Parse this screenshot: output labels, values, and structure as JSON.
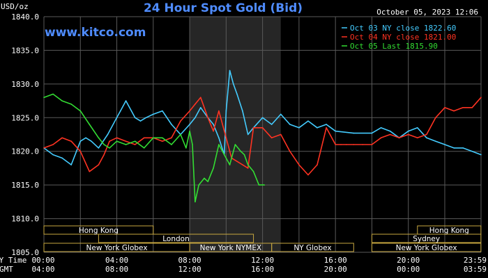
{
  "header": {
    "title": "24 Hour Spot Gold (Bid)",
    "unit": "USD/oz",
    "timestamp": "October 05, 2023 12:06",
    "watermark": "www.kitco.com"
  },
  "footer": {
    "left_row1": "NY Time",
    "left_row2": "GMT"
  },
  "sessions": [
    {
      "row": 1,
      "label": "Hong Kong",
      "start": "00:00",
      "end": "06:00"
    },
    {
      "row": 1,
      "label": "Hong Kong",
      "start": "20:30",
      "end": "23:59"
    },
    {
      "row": 2,
      "label": "London",
      "start": "03:00",
      "end": "11:30"
    },
    {
      "row": 2,
      "label": "Sydney",
      "start": "18:00",
      "end": "23:59"
    },
    {
      "row": 3,
      "label": "New York Globex",
      "start": "00:00",
      "end": "08:00"
    },
    {
      "row": 3,
      "label": "New York NYMEX",
      "start": "08:00",
      "end": "12:30"
    },
    {
      "row": 3,
      "label": "NY Globex",
      "start": "12:30",
      "end": "17:00"
    },
    {
      "row": 3,
      "label": "New York Globex",
      "start": "18:00",
      "end": "23:59"
    }
  ],
  "chart_data": {
    "type": "line",
    "ylim": [
      1805,
      1840
    ],
    "y_ticks": [
      "1805.0",
      "1810.0",
      "1815.0",
      "1820.0",
      "1825.0",
      "1830.0",
      "1835.0",
      "1840.0"
    ],
    "x_ticks_ny": [
      "00:00",
      "04:00",
      "08:00",
      "12:00",
      "16:00",
      "20:00",
      "23:59"
    ],
    "x_ticks_gmt": [
      "04:00",
      "08:00",
      "12:00",
      "16:00",
      "20:00",
      "00:00",
      "03:59"
    ],
    "highlight_range_hours": [
      8,
      13
    ],
    "grid": true,
    "legend_position": "top-right",
    "series": [
      {
        "name": "Oct 03 NY close 1822.60",
        "color": "#44ccff",
        "x": [
          0,
          0.5,
          1,
          1.5,
          2,
          2.3,
          2.6,
          3,
          3.5,
          4,
          4.2,
          4.5,
          4.8,
          5,
          5.3,
          5.6,
          6,
          6.5,
          7,
          7.5,
          8,
          8.3,
          8.6,
          9,
          9.3,
          9.6,
          9.9,
          10,
          10.2,
          10.4,
          10.6,
          10.9,
          11.2,
          11.5,
          12,
          12.5,
          13,
          13.5,
          14,
          14.5,
          15,
          15.5,
          16,
          17,
          18,
          18.5,
          19,
          19.5,
          20,
          20.5,
          21,
          21.5,
          22,
          22.5,
          23,
          23.5,
          23.99
        ],
        "y": [
          1820.5,
          1819.5,
          1819,
          1818,
          1821.5,
          1822,
          1821.5,
          1820.5,
          1822.5,
          1825,
          1826,
          1827.5,
          1826,
          1825,
          1824.5,
          1825,
          1825.5,
          1826,
          1824,
          1822.5,
          1824,
          1825,
          1826.5,
          1825,
          1824,
          1822,
          1819.5,
          1826,
          1832,
          1830,
          1828.5,
          1826,
          1822.5,
          1823.5,
          1825,
          1824,
          1825.5,
          1824,
          1823.5,
          1824.5,
          1823.5,
          1824,
          1823,
          1822.7,
          1822.7,
          1823.5,
          1823,
          1822,
          1823,
          1823.5,
          1822,
          1821.5,
          1821,
          1820.5,
          1820.5,
          1820,
          1819.5
        ]
      },
      {
        "name": "Oct 04 NY close 1821.00",
        "color": "#ff3322",
        "x": [
          0,
          0.5,
          1,
          1.5,
          2,
          2.5,
          3,
          3.3,
          3.6,
          4,
          4.5,
          5,
          5.5,
          6,
          6.5,
          7,
          7.5,
          8,
          8.3,
          8.6,
          9,
          9.3,
          9.6,
          10,
          10.3,
          10.6,
          10.9,
          11.2,
          11.5,
          12,
          12.5,
          13,
          13.5,
          14,
          14.5,
          15,
          15.5,
          16,
          16.3,
          16.6,
          17,
          17.5,
          18,
          18.5,
          19,
          19.5,
          20,
          20.5,
          21,
          21.5,
          22,
          22.5,
          23,
          23.5,
          23.99
        ],
        "y": [
          1820.5,
          1821,
          1822,
          1821.5,
          1820,
          1817,
          1818,
          1819.5,
          1821.5,
          1822,
          1821.5,
          1821,
          1822,
          1822,
          1821.5,
          1822,
          1824.5,
          1826,
          1827,
          1828,
          1825,
          1823,
          1826,
          1822,
          1819,
          1818.5,
          1818,
          1817.5,
          1823.5,
          1823.5,
          1822,
          1822.5,
          1820,
          1818,
          1816.5,
          1818,
          1823.5,
          1821,
          1821,
          1821,
          1821,
          1821,
          1821,
          1822,
          1822.5,
          1822,
          1822.5,
          1822,
          1822.5,
          1825,
          1826.5,
          1826,
          1826.5,
          1826.5,
          1828
        ]
      },
      {
        "name": "Oct 05 Last 1815.90",
        "color": "#33dd33",
        "x": [
          0,
          0.5,
          1,
          1.5,
          2,
          2.5,
          3,
          3.3,
          3.6,
          4,
          4.5,
          5,
          5.5,
          6,
          6.5,
          7,
          7.5,
          7.8,
          8,
          8.15,
          8.3,
          8.5,
          8.8,
          9,
          9.3,
          9.6,
          9.9,
          10.2,
          10.5,
          10.8,
          11,
          11.2,
          11.5,
          11.8,
          12.1
        ],
        "y": [
          1828,
          1828.5,
          1827.5,
          1827,
          1826,
          1824,
          1822,
          1821,
          1820.5,
          1821.5,
          1821,
          1821.5,
          1820.5,
          1822,
          1822,
          1821,
          1822.5,
          1820.5,
          1823,
          1821,
          1812.5,
          1815,
          1816,
          1815.5,
          1817.5,
          1821,
          1819.5,
          1818,
          1821,
          1820,
          1819.5,
          1818,
          1817,
          1815,
          1815
        ]
      }
    ]
  }
}
